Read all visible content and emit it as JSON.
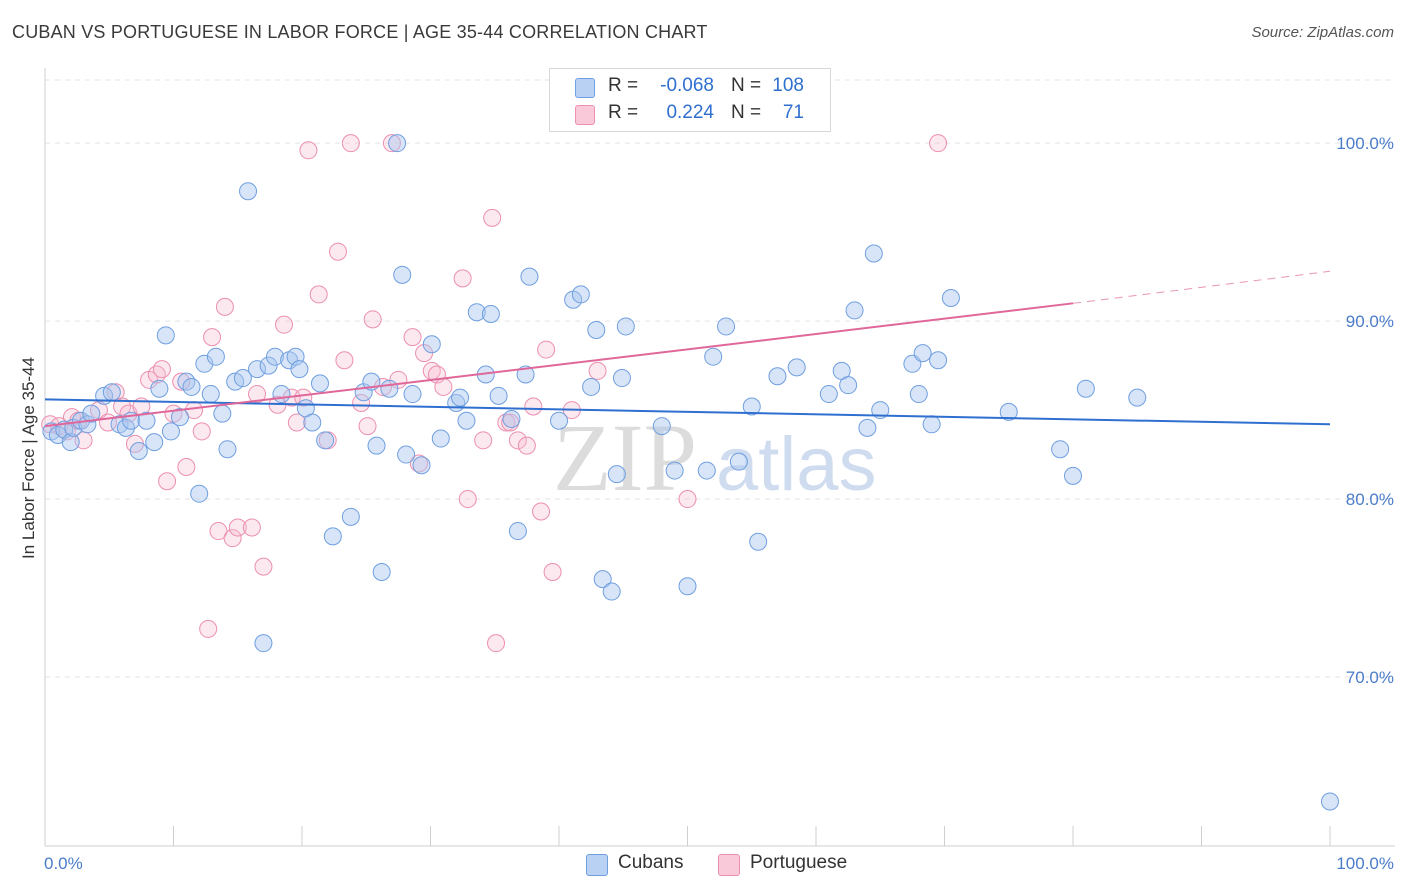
{
  "header": {
    "title": "CUBAN VS PORTUGUESE IN LABOR FORCE | AGE 35-44 CORRELATION CHART",
    "source": "Source: ZipAtlas.com"
  },
  "legend": {
    "r_label": "R =",
    "n_label": "N =",
    "rows": [
      {
        "name": "Cubans",
        "r": "-0.068",
        "n": "108",
        "color": "#a9c6ef",
        "border": "#6f9fe0"
      },
      {
        "name": "Portuguese",
        "r": "0.224",
        "n": "71",
        "color": "#f7bcd0",
        "border": "#ec8fb0"
      }
    ]
  },
  "watermark": {
    "zip": "ZIP",
    "atlas": "atlas"
  },
  "chart_data": {
    "type": "scatter",
    "title": "CUBAN VS PORTUGUESE IN LABOR FORCE | AGE 35-44 CORRELATION CHART",
    "xlabel": "",
    "ylabel": "In Labor Force | Age 35-44",
    "xlim": [
      0,
      100
    ],
    "ylim": [
      60.5,
      104
    ],
    "x_tick_labels": [
      "0.0%",
      "100.0%"
    ],
    "y_ticks": [
      70,
      80,
      90,
      100
    ],
    "y_tick_labels": [
      "70.0%",
      "80.0%",
      "90.0%",
      "100.0%"
    ],
    "grid": true,
    "legend_position": "top-center",
    "series": [
      {
        "name": "Cubans",
        "color": "#6f9fe0",
        "trend": {
          "x0": 0,
          "y0": 85.6,
          "x1": 100,
          "y1": 84.2,
          "color": "#2f6fcf"
        },
        "points": [
          [
            0.5,
            83.8
          ],
          [
            1.0,
            83.6
          ],
          [
            1.5,
            83.9
          ],
          [
            2.0,
            83.2
          ],
          [
            2.2,
            84.0
          ],
          [
            2.8,
            84.4
          ],
          [
            3.3,
            84.2
          ],
          [
            3.6,
            84.8
          ],
          [
            4.6,
            85.8
          ],
          [
            5.2,
            86.0
          ],
          [
            5.8,
            84.2
          ],
          [
            6.3,
            84.0
          ],
          [
            6.7,
            84.4
          ],
          [
            7.3,
            82.7
          ],
          [
            7.9,
            84.4
          ],
          [
            8.5,
            83.2
          ],
          [
            8.9,
            86.2
          ],
          [
            9.4,
            89.2
          ],
          [
            9.8,
            83.8
          ],
          [
            10.5,
            84.6
          ],
          [
            11.0,
            86.6
          ],
          [
            11.4,
            86.3
          ],
          [
            12.0,
            80.3
          ],
          [
            12.4,
            87.6
          ],
          [
            12.9,
            85.9
          ],
          [
            13.3,
            88.0
          ],
          [
            13.8,
            84.8
          ],
          [
            14.2,
            82.8
          ],
          [
            14.8,
            86.6
          ],
          [
            15.4,
            86.8
          ],
          [
            15.8,
            97.3
          ],
          [
            16.5,
            87.3
          ],
          [
            17.0,
            71.9
          ],
          [
            17.4,
            87.5
          ],
          [
            17.9,
            88.0
          ],
          [
            18.4,
            85.9
          ],
          [
            19.0,
            87.8
          ],
          [
            19.5,
            88.0
          ],
          [
            19.8,
            87.3
          ],
          [
            20.3,
            85.1
          ],
          [
            20.8,
            84.3
          ],
          [
            21.4,
            86.5
          ],
          [
            21.8,
            83.3
          ],
          [
            22.4,
            77.9
          ],
          [
            23.8,
            79.0
          ],
          [
            24.8,
            86.0
          ],
          [
            25.4,
            86.6
          ],
          [
            25.8,
            83.0
          ],
          [
            26.2,
            75.9
          ],
          [
            26.8,
            86.2
          ],
          [
            27.4,
            100.0
          ],
          [
            27.8,
            92.6
          ],
          [
            28.1,
            82.5
          ],
          [
            28.6,
            85.9
          ],
          [
            29.3,
            81.9
          ],
          [
            30.1,
            88.7
          ],
          [
            30.8,
            83.4
          ],
          [
            32.0,
            85.4
          ],
          [
            32.3,
            85.7
          ],
          [
            32.8,
            84.4
          ],
          [
            33.6,
            90.5
          ],
          [
            34.3,
            87.0
          ],
          [
            34.7,
            90.4
          ],
          [
            35.3,
            85.8
          ],
          [
            36.3,
            84.5
          ],
          [
            36.8,
            78.2
          ],
          [
            37.4,
            87.0
          ],
          [
            37.7,
            92.5
          ],
          [
            40.0,
            84.4
          ],
          [
            41.1,
            91.2
          ],
          [
            41.7,
            91.5
          ],
          [
            42.5,
            86.3
          ],
          [
            42.9,
            89.5
          ],
          [
            43.4,
            75.5
          ],
          [
            44.1,
            74.8
          ],
          [
            44.5,
            81.4
          ],
          [
            44.9,
            86.8
          ],
          [
            45.2,
            89.7
          ],
          [
            48.0,
            84.1
          ],
          [
            49.0,
            81.6
          ],
          [
            50.0,
            75.1
          ],
          [
            51.5,
            81.6
          ],
          [
            52.0,
            88.0
          ],
          [
            53.0,
            89.7
          ],
          [
            54.0,
            82.1
          ],
          [
            55.0,
            85.2
          ],
          [
            55.5,
            77.6
          ],
          [
            57.0,
            86.9
          ],
          [
            58.5,
            87.4
          ],
          [
            61.0,
            85.9
          ],
          [
            62.0,
            87.2
          ],
          [
            62.5,
            86.4
          ],
          [
            63.0,
            90.6
          ],
          [
            64.0,
            84.0
          ],
          [
            64.5,
            93.8
          ],
          [
            65.0,
            85.0
          ],
          [
            67.5,
            87.6
          ],
          [
            68.0,
            85.9
          ],
          [
            68.3,
            88.2
          ],
          [
            69.0,
            84.2
          ],
          [
            69.5,
            87.8
          ],
          [
            70.5,
            91.3
          ],
          [
            75.0,
            84.9
          ],
          [
            79.0,
            82.8
          ],
          [
            80.0,
            81.3
          ],
          [
            81.0,
            86.2
          ],
          [
            100.0,
            63.0
          ],
          [
            85.0,
            85.7
          ]
        ]
      },
      {
        "name": "Portuguese",
        "color": "#ec8fb0",
        "trend": {
          "x0": 0,
          "y0": 84.1,
          "x1": 80,
          "y1": 91.0,
          "x2": 100,
          "y2": 92.8,
          "color": "#e0679a"
        },
        "points": [
          [
            0.4,
            84.2
          ],
          [
            1.1,
            84.1
          ],
          [
            1.7,
            83.8
          ],
          [
            2.1,
            84.6
          ],
          [
            2.6,
            84.4
          ],
          [
            3.0,
            83.3
          ],
          [
            4.2,
            85.0
          ],
          [
            4.9,
            84.3
          ],
          [
            5.5,
            86.0
          ],
          [
            6.0,
            85.2
          ],
          [
            6.5,
            84.8
          ],
          [
            7.0,
            83.1
          ],
          [
            7.5,
            85.2
          ],
          [
            8.1,
            86.7
          ],
          [
            8.7,
            87.0
          ],
          [
            9.1,
            87.3
          ],
          [
            9.5,
            81.0
          ],
          [
            10.0,
            84.8
          ],
          [
            10.6,
            86.6
          ],
          [
            11.0,
            81.8
          ],
          [
            11.6,
            85.0
          ],
          [
            12.2,
            83.8
          ],
          [
            12.7,
            72.7
          ],
          [
            13.0,
            89.1
          ],
          [
            13.5,
            78.2
          ],
          [
            14.0,
            90.8
          ],
          [
            14.6,
            77.8
          ],
          [
            15.0,
            78.4
          ],
          [
            16.1,
            78.4
          ],
          [
            16.5,
            85.9
          ],
          [
            17.0,
            76.2
          ],
          [
            18.1,
            85.3
          ],
          [
            18.6,
            89.8
          ],
          [
            19.2,
            85.7
          ],
          [
            19.6,
            84.3
          ],
          [
            20.1,
            85.7
          ],
          [
            20.5,
            99.6
          ],
          [
            21.3,
            91.5
          ],
          [
            22.0,
            83.3
          ],
          [
            22.8,
            93.9
          ],
          [
            23.3,
            87.8
          ],
          [
            23.8,
            100.0
          ],
          [
            24.6,
            85.4
          ],
          [
            25.1,
            84.1
          ],
          [
            25.5,
            90.1
          ],
          [
            26.3,
            86.3
          ],
          [
            27.0,
            100.0
          ],
          [
            27.5,
            86.7
          ],
          [
            28.6,
            89.1
          ],
          [
            29.1,
            82.0
          ],
          [
            29.5,
            88.2
          ],
          [
            30.1,
            87.2
          ],
          [
            30.5,
            87.0
          ],
          [
            31.0,
            86.3
          ],
          [
            32.5,
            92.4
          ],
          [
            32.9,
            80.0
          ],
          [
            34.1,
            83.3
          ],
          [
            34.8,
            95.8
          ],
          [
            35.1,
            71.9
          ],
          [
            35.9,
            84.3
          ],
          [
            36.2,
            84.3
          ],
          [
            36.8,
            83.3
          ],
          [
            37.5,
            83.0
          ],
          [
            38.0,
            85.2
          ],
          [
            38.6,
            79.3
          ],
          [
            39.0,
            88.4
          ],
          [
            39.5,
            75.9
          ],
          [
            41.0,
            85.0
          ],
          [
            43.0,
            87.2
          ],
          [
            50.0,
            80.0
          ],
          [
            69.5,
            100.0
          ]
        ]
      }
    ]
  }
}
